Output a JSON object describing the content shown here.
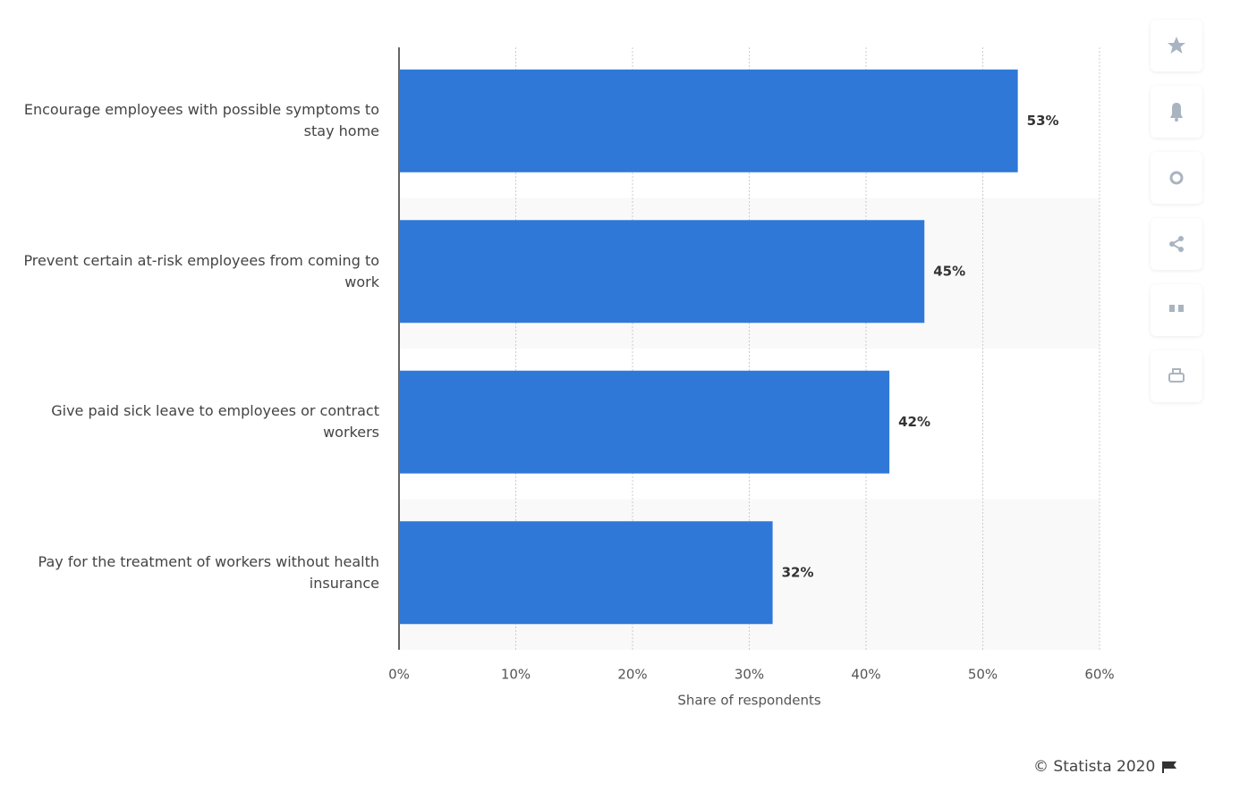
{
  "chart_data": {
    "type": "bar",
    "orientation": "horizontal",
    "categories": [
      "Encourage employees with possible symptoms to stay home",
      "Prevent certain at-risk employees from coming to work",
      "Give paid sick leave to employees or contract workers",
      "Pay for the treatment of workers without health insurance"
    ],
    "values": [
      53,
      45,
      42,
      32
    ],
    "value_labels": [
      "53%",
      "45%",
      "42%",
      "32%"
    ],
    "color": "#2f78d8",
    "xlabel": "Share of respondents",
    "xlim": [
      0,
      60
    ],
    "xticks": [
      {
        "value": 0,
        "label": "0%"
      },
      {
        "value": 10,
        "label": "10%"
      },
      {
        "value": 20,
        "label": "20%"
      },
      {
        "value": 30,
        "label": "30%"
      },
      {
        "value": 40,
        "label": "40%"
      },
      {
        "value": 50,
        "label": "50%"
      },
      {
        "value": 60,
        "label": "60%"
      }
    ],
    "grid": true
  },
  "footer": {
    "credit": "© Statista 2020"
  }
}
